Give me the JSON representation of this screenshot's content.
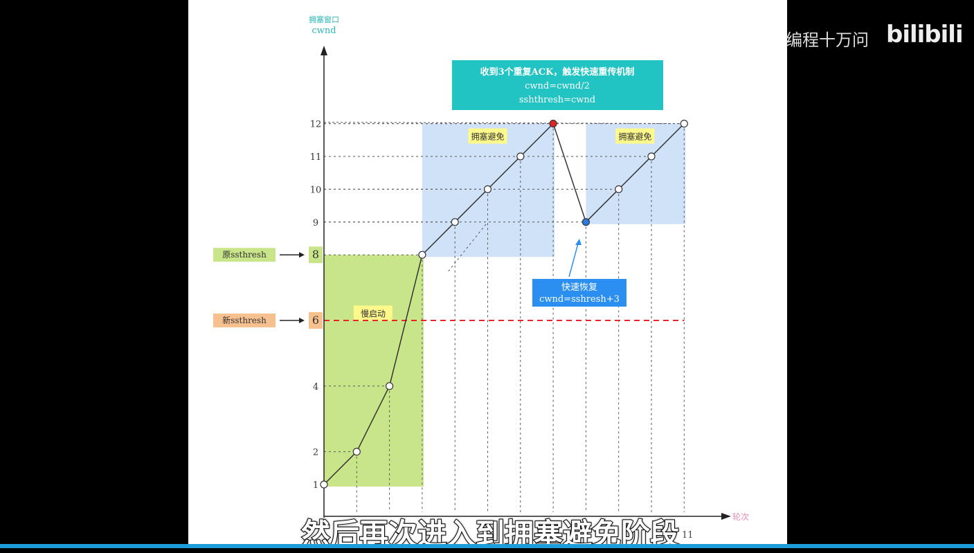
{
  "watermark": {
    "channel": "编程十万问",
    "logo": "bilibili"
  },
  "subtitle": "然后再次进入到拥塞避免阶段",
  "chart_data": {
    "type": "line",
    "ylabel_cn": "拥塞窗口",
    "ylabel": "cwnd",
    "xlabel": "轮次",
    "x": [
      0,
      1,
      2,
      3,
      4,
      5,
      6,
      7,
      8,
      9,
      10,
      11
    ],
    "y": [
      1,
      2,
      4,
      8,
      9,
      10,
      11,
      12,
      9,
      10,
      11,
      12
    ],
    "ytick_labels": [
      1,
      2,
      4,
      6,
      8,
      9,
      10,
      11,
      12
    ],
    "xtick_labels": [
      {
        "x": 11,
        "label": "11"
      }
    ],
    "regions": [
      {
        "label": "慢启动",
        "x": [
          0,
          3
        ],
        "y": [
          1,
          8
        ],
        "color": "#c9e58a"
      },
      {
        "label": "拥塞避免",
        "x": [
          3,
          7
        ],
        "y": [
          8,
          12
        ],
        "color": "#cfe2f8"
      },
      {
        "label": "拥塞避免",
        "x": [
          8,
          11
        ],
        "y": [
          9,
          12
        ],
        "color": "#cfe2f8"
      }
    ],
    "threshold_lines": [
      {
        "label": "原ssthresh",
        "value": 8,
        "color": "#c9e58a"
      },
      {
        "label": "新ssthresh",
        "value": 6,
        "color": "#f7c08f",
        "line_color": "#e8262a"
      }
    ],
    "annotations": [
      {
        "lines": [
          "收到3个重复ACK，触发快速重传机制",
          "cwnd=cwnd/2",
          "sshthresh=cwnd"
        ],
        "color": "#21c3c3",
        "points_to": {
          "x": 7,
          "y": 12
        }
      },
      {
        "lines": [
          "快速恢复",
          "cwnd=sshresh+3"
        ],
        "color": "#2a8ff0",
        "points_to": {
          "x": 8,
          "y": 9
        }
      }
    ],
    "highlight_points": [
      {
        "x": 7,
        "y": 12,
        "color": "#e02424"
      },
      {
        "x": 8,
        "y": 9,
        "color": "#2a7de0"
      }
    ]
  }
}
